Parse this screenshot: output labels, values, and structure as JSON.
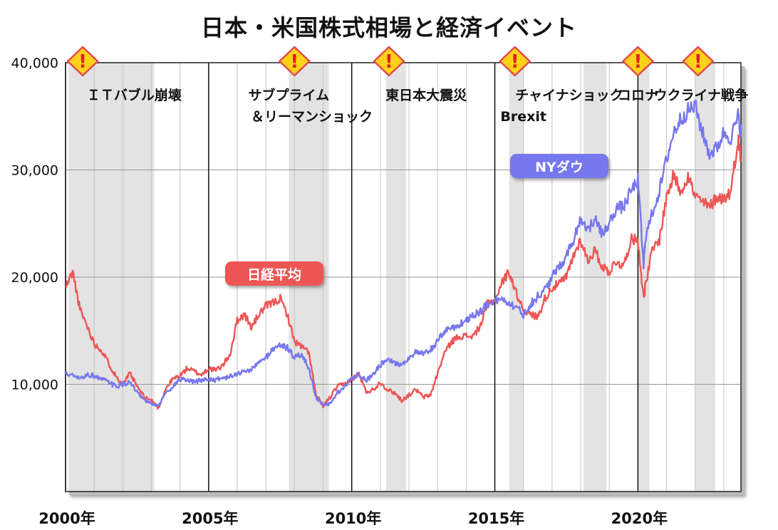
{
  "title": "日本・米国株式相場と経済イベント",
  "chart_data": {
    "type": "line",
    "title": "日本・米国株式相場と経済イベント",
    "xlabel": "",
    "ylabel": "",
    "xlim": [
      2000,
      2023.6
    ],
    "ylim": [
      0,
      40000
    ],
    "y_ticks": [
      10000,
      20000,
      30000,
      40000
    ],
    "y_tick_labels": [
      "10,000",
      "20,000",
      "30,000",
      "40,000"
    ],
    "x_ticks": [
      2000,
      2005,
      2010,
      2015,
      2020
    ],
    "x_tick_labels": [
      "2000年",
      "2005年",
      "2010年",
      "2015年",
      "2020年"
    ],
    "grid": true,
    "series": [
      {
        "name": "日経平均",
        "color": "#ee5555",
        "x": [
          2000.0,
          2000.25,
          2000.5,
          2000.75,
          2001.0,
          2001.25,
          2001.5,
          2001.75,
          2002.0,
          2002.25,
          2002.5,
          2002.75,
          2003.0,
          2003.25,
          2003.5,
          2003.75,
          2004.0,
          2004.25,
          2004.5,
          2004.75,
          2005.0,
          2005.25,
          2005.5,
          2005.75,
          2006.0,
          2006.25,
          2006.5,
          2006.75,
          2007.0,
          2007.25,
          2007.5,
          2007.75,
          2008.0,
          2008.25,
          2008.5,
          2008.75,
          2009.0,
          2009.25,
          2009.5,
          2009.75,
          2010.0,
          2010.25,
          2010.5,
          2010.75,
          2011.0,
          2011.25,
          2011.5,
          2011.75,
          2012.0,
          2012.25,
          2012.5,
          2012.75,
          2013.0,
          2013.25,
          2013.5,
          2013.75,
          2014.0,
          2014.25,
          2014.5,
          2014.75,
          2015.0,
          2015.25,
          2015.5,
          2015.75,
          2016.0,
          2016.25,
          2016.5,
          2016.75,
          2017.0,
          2017.25,
          2017.5,
          2017.75,
          2018.0,
          2018.25,
          2018.5,
          2018.75,
          2019.0,
          2019.25,
          2019.5,
          2019.75,
          2020.0,
          2020.2,
          2020.25,
          2020.5,
          2020.75,
          2021.0,
          2021.25,
          2021.5,
          2021.75,
          2022.0,
          2022.25,
          2022.5,
          2022.75,
          2023.0,
          2023.25,
          2023.5,
          2023.6
        ],
        "values": [
          19000,
          20500,
          17000,
          15500,
          13800,
          13200,
          12000,
          10800,
          10000,
          11000,
          9800,
          8800,
          8500,
          7800,
          9600,
          10500,
          10800,
          11500,
          11200,
          10900,
          11500,
          11300,
          11800,
          12800,
          16000,
          16500,
          15300,
          16500,
          17300,
          17600,
          18000,
          16500,
          14000,
          13500,
          13000,
          9000,
          8000,
          8800,
          9800,
          10000,
          10500,
          11000,
          9300,
          9500,
          10200,
          9500,
          9200,
          8500,
          9000,
          9500,
          8800,
          9000,
          11000,
          13000,
          14000,
          14500,
          14500,
          14500,
          15500,
          17500,
          17800,
          19500,
          20500,
          18500,
          17000,
          16500,
          16300,
          18000,
          19000,
          19400,
          20000,
          22000,
          23500,
          21500,
          22500,
          21000,
          20500,
          21500,
          21000,
          23500,
          23500,
          18000,
          19000,
          22500,
          23500,
          27500,
          29500,
          28000,
          29500,
          27500,
          27000,
          26500,
          27500,
          27300,
          28000,
          33000,
          31000
        ]
      },
      {
        "name": "NYダウ",
        "color": "#7777ee",
        "x": [
          2000.0,
          2000.25,
          2000.5,
          2000.75,
          2001.0,
          2001.25,
          2001.5,
          2001.75,
          2002.0,
          2002.25,
          2002.5,
          2002.75,
          2003.0,
          2003.25,
          2003.5,
          2003.75,
          2004.0,
          2004.25,
          2004.5,
          2004.75,
          2005.0,
          2005.25,
          2005.5,
          2005.75,
          2006.0,
          2006.25,
          2006.5,
          2006.75,
          2007.0,
          2007.25,
          2007.5,
          2007.75,
          2008.0,
          2008.25,
          2008.5,
          2008.75,
          2009.0,
          2009.25,
          2009.5,
          2009.75,
          2010.0,
          2010.25,
          2010.5,
          2010.75,
          2011.0,
          2011.25,
          2011.5,
          2011.75,
          2012.0,
          2012.25,
          2012.5,
          2012.75,
          2013.0,
          2013.25,
          2013.5,
          2013.75,
          2014.0,
          2014.25,
          2014.5,
          2014.75,
          2015.0,
          2015.25,
          2015.5,
          2015.75,
          2016.0,
          2016.25,
          2016.5,
          2016.75,
          2017.0,
          2017.25,
          2017.5,
          2017.75,
          2018.0,
          2018.25,
          2018.5,
          2018.75,
          2019.0,
          2019.25,
          2019.5,
          2019.75,
          2020.0,
          2020.2,
          2020.25,
          2020.5,
          2020.75,
          2021.0,
          2021.25,
          2021.5,
          2021.75,
          2022.0,
          2022.25,
          2022.5,
          2022.75,
          2023.0,
          2023.25,
          2023.5,
          2023.6
        ],
        "values": [
          11000,
          10800,
          10500,
          10900,
          10800,
          10500,
          10200,
          9800,
          10000,
          10200,
          9200,
          8500,
          8200,
          8000,
          9200,
          9800,
          10500,
          10300,
          10200,
          10400,
          10500,
          10400,
          10600,
          10700,
          11000,
          11200,
          11400,
          12000,
          12500,
          13300,
          13700,
          13400,
          12500,
          12800,
          11500,
          8800,
          8000,
          8200,
          9200,
          9800,
          10500,
          11000,
          10300,
          11000,
          11800,
          12500,
          12000,
          11800,
          12500,
          13000,
          12800,
          13200,
          14000,
          15000,
          15300,
          15500,
          16000,
          16500,
          16800,
          17500,
          17800,
          18000,
          17600,
          17200,
          16500,
          17500,
          18200,
          18800,
          20000,
          21000,
          22000,
          23500,
          25500,
          24500,
          25300,
          24000,
          25000,
          26500,
          26500,
          28000,
          29000,
          21000,
          23500,
          26000,
          28000,
          31000,
          33500,
          34800,
          35500,
          36000,
          33500,
          31500,
          32000,
          33500,
          33000,
          35000,
          33500
        ]
      }
    ],
    "series_labels": [
      {
        "series": "日経平均",
        "text": "日経平均"
      },
      {
        "series": "NYダウ",
        "text": "NYダウ"
      }
    ],
    "shaded_periods": [
      [
        2000.1,
        2003.1
      ],
      [
        2007.8,
        2009.2
      ],
      [
        2011.2,
        2011.9
      ],
      [
        2015.5,
        2016.0
      ],
      [
        2018.1,
        2018.9
      ],
      [
        2020.0,
        2020.4
      ],
      [
        2022.0,
        2022.7
      ]
    ],
    "events": [
      {
        "x": 2000.6,
        "labels": [
          "ＩＴバブル崩壊"
        ]
      },
      {
        "x": 2008.0,
        "labels": [
          "サブプライム",
          "＆リーマンショック"
        ]
      },
      {
        "x": 2011.3,
        "labels": [
          "東日本大震災"
        ]
      },
      {
        "x": 2015.7,
        "labels": [
          "チャイナショック",
          "Brexit"
        ]
      },
      {
        "x": 2020.0,
        "labels": [
          "コロナ"
        ]
      },
      {
        "x": 2022.1,
        "labels": [
          "ウクライナ戦争"
        ]
      }
    ]
  }
}
